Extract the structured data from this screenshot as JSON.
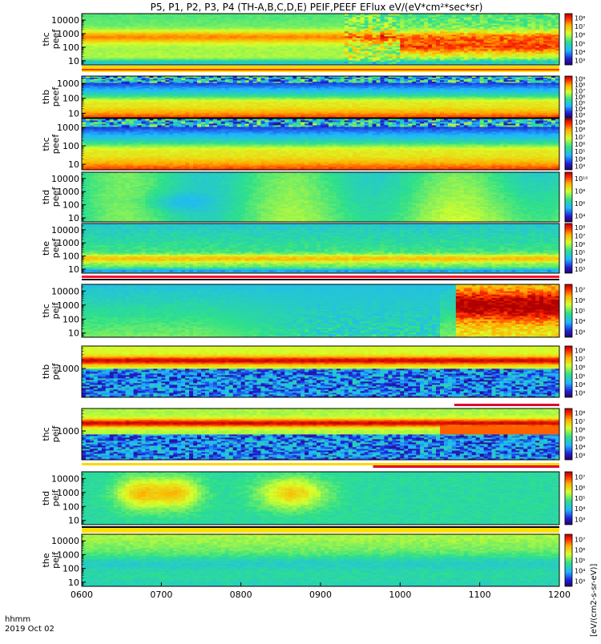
{
  "chart_data": {
    "type": "heatmap",
    "title": "P5, P1, P2, P3, P4 (TH-A,B,C,D,E) PEIF,PEEF EFlux eV/(eV*cm²*sec*sr)",
    "x": {
      "range": [
        600,
        1200
      ],
      "tick_values": [
        600,
        700,
        800,
        900,
        1000,
        1100,
        1200
      ],
      "tick_labels": [
        "0600",
        "0700",
        "0800",
        "0900",
        "1000",
        "1100",
        "1200"
      ],
      "label_top": "hhmm",
      "label_bottom": "2019 Oct 02"
    },
    "colorbar_unit": "[eV/(cm2-s-sr-eV)]",
    "panels": [
      {
        "label": [
          "thc",
          "peef"
        ],
        "ylog": [
          5,
          30000
        ],
        "yticks": [
          10,
          100,
          1000,
          10000
        ],
        "ytick_labels": [
          "10",
          "100",
          "1000",
          "10000"
        ],
        "cticks": [
          "10³",
          "10⁴",
          "10⁵",
          "10⁶",
          "10⁷",
          "10⁸"
        ],
        "pattern": "thc_peef"
      },
      {
        "label": [
          "thb",
          "peef"
        ],
        "ylog": [
          5,
          3000
        ],
        "yticks": [
          10,
          100,
          1000
        ],
        "ytick_labels": [
          "10",
          "100",
          "1000"
        ],
        "cticks": [
          "10³",
          "10⁴",
          "10⁵",
          "10⁶",
          "10⁷",
          "10⁸",
          "10⁹"
        ],
        "pattern": "thb_peef"
      },
      {
        "label": [
          "thc",
          "peef"
        ],
        "ylog": [
          5,
          3000
        ],
        "yticks": [
          10,
          100,
          1000
        ],
        "ytick_labels": [
          "10",
          "100",
          "1000"
        ],
        "cticks": [
          "10³",
          "10⁴",
          "10⁵",
          "10⁶",
          "10⁷",
          "10⁸",
          "10⁹"
        ],
        "pattern": "thb_peef"
      },
      {
        "label": [
          "thd",
          "peef"
        ],
        "ylog": [
          5,
          30000
        ],
        "yticks": [
          10,
          100,
          1000,
          10000
        ],
        "ytick_labels": [
          "10",
          "100",
          "1000",
          "10000"
        ],
        "cticks": [
          "10⁴",
          "10⁶",
          "10⁸",
          "10¹⁰"
        ],
        "pattern": "thd_peef"
      },
      {
        "label": [
          "the",
          "peef"
        ],
        "ylog": [
          5,
          30000
        ],
        "yticks": [
          10,
          100,
          1000,
          10000
        ],
        "ytick_labels": [
          "10",
          "100",
          "1000",
          "10000"
        ],
        "cticks": [
          "10³",
          "10⁴",
          "10⁵",
          "10⁶",
          "10⁷",
          "10⁸"
        ],
        "pattern": "the_peef"
      },
      {
        "label": [
          "thc",
          "peif"
        ],
        "ylog": [
          5,
          30000
        ],
        "yticks": [
          10,
          100,
          1000,
          10000
        ],
        "ytick_labels": [
          "10",
          "100",
          "1000",
          "10000"
        ],
        "cticks": [
          "10³",
          "10⁴",
          "10⁵",
          "10⁶",
          "10⁷"
        ],
        "pattern": "thc_peif"
      },
      {
        "label": [
          "thb",
          "peif"
        ],
        "ylog": [
          100,
          6000
        ],
        "yticks": [
          1000
        ],
        "ytick_labels": [
          "1000"
        ],
        "cticks": [
          "10³",
          "10⁴",
          "10⁵",
          "10⁶",
          "10⁷",
          "10⁸"
        ],
        "pattern": "thb_peif"
      },
      {
        "label": [
          "thc",
          "peif"
        ],
        "ylog": [
          100,
          6000
        ],
        "yticks": [
          1000
        ],
        "ytick_labels": [
          "1000"
        ],
        "cticks": [
          "10³",
          "10⁴",
          "10⁵",
          "10⁶",
          "10⁷",
          "10⁸"
        ],
        "pattern": "thc_peif2"
      },
      {
        "label": [
          "thd",
          "peif"
        ],
        "ylog": [
          5,
          30000
        ],
        "yticks": [
          10,
          100,
          1000,
          10000
        ],
        "ytick_labels": [
          "10",
          "100",
          "1000",
          "10000"
        ],
        "cticks": [
          "10³",
          "10⁴",
          "10⁵",
          "10⁶",
          "10⁷"
        ],
        "pattern": "thd_peif"
      },
      {
        "label": [
          "the",
          "peif"
        ],
        "ylog": [
          5,
          30000
        ],
        "yticks": [
          10,
          100,
          1000,
          10000
        ],
        "ytick_labels": [
          "10",
          "100",
          "1000",
          "10000"
        ],
        "cticks": [
          "10³",
          "10⁴",
          "10⁵",
          "10⁶",
          "10⁷"
        ],
        "pattern": "the_peif"
      }
    ]
  }
}
